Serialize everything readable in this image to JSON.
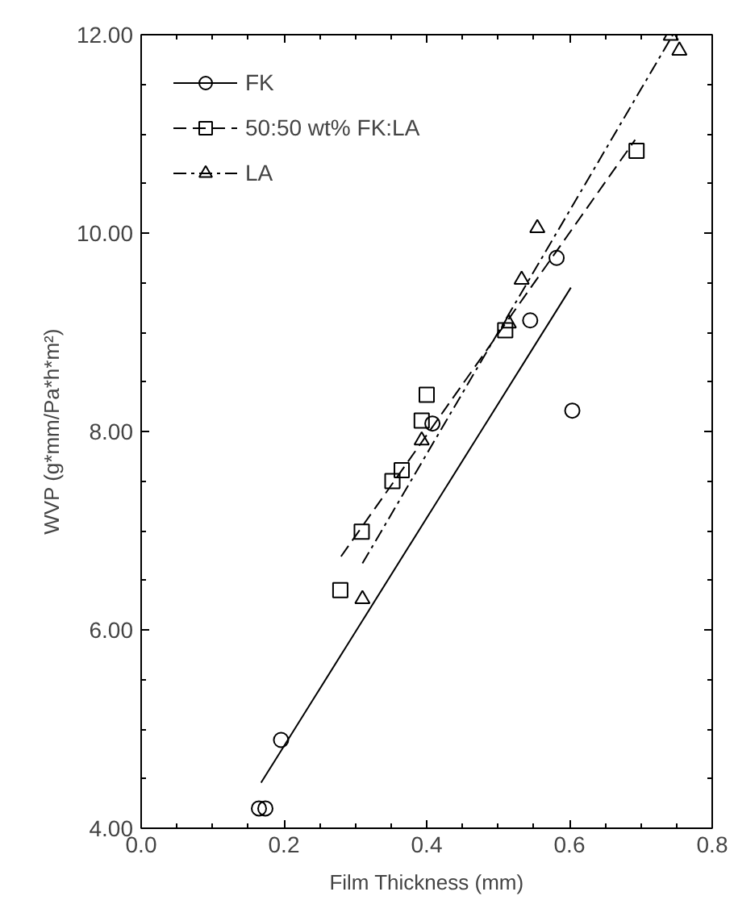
{
  "chart_data": {
    "type": "scatter",
    "xlabel": "Film Thickness (mm)",
    "ylabel": "WVP (g*mm/Pa*h*m²)",
    "xlim": [
      0.0,
      0.8
    ],
    "ylim": [
      4.0,
      12.0
    ],
    "xticks": [
      {
        "value": 0,
        "label": "0.0"
      },
      {
        "value": 0.2,
        "label": "0.2"
      },
      {
        "value": 0.4,
        "label": "0.4"
      },
      {
        "value": 0.6,
        "label": "0.6"
      },
      {
        "value": 0.8,
        "label": "0.8"
      }
    ],
    "yticks": [
      {
        "value": 4,
        "label": "4.00"
      },
      {
        "value": 6,
        "label": "6.00"
      },
      {
        "value": 8,
        "label": "8.00"
      },
      {
        "value": 10,
        "label": "10.00"
      },
      {
        "value": 12,
        "label": "12.00"
      }
    ],
    "grid": false,
    "legend": "top left",
    "series": [
      {
        "name": "FK",
        "marker": "circle",
        "color": "#000000",
        "x": [
          0.165,
          0.174,
          0.196,
          0.408,
          0.545,
          0.604,
          0.582
        ],
        "values": [
          4.2,
          4.2,
          4.89,
          8.08,
          9.12,
          8.21,
          9.75
        ]
      },
      {
        "type": "line",
        "line_style": "solid",
        "color": "#000000",
        "x": [
          0.168,
          0.602
        ],
        "values": [
          4.46,
          9.45
        ]
      },
      {
        "name": "50:50 wt% FK:LA",
        "marker": "square",
        "color": "#000000",
        "x": [
          0.279,
          0.309,
          0.352,
          0.365,
          0.393,
          0.4,
          0.51,
          0.694
        ],
        "values": [
          6.4,
          6.99,
          7.5,
          7.61,
          8.11,
          8.37,
          9.02,
          10.83
        ]
      },
      {
        "type": "line",
        "line_style": "dashed",
        "color": "#000000",
        "x": [
          0.28,
          0.692
        ],
        "values": [
          6.74,
          10.94
        ]
      },
      {
        "name": "LA",
        "marker": "triangle",
        "color": "#000000",
        "x": [
          0.31,
          0.393,
          0.515,
          0.533,
          0.555,
          0.742,
          0.754
        ],
        "values": [
          6.31,
          7.91,
          9.09,
          9.53,
          10.05,
          11.99,
          11.84
        ]
      },
      {
        "type": "line",
        "line_style": "dashdot",
        "color": "#000000",
        "x": [
          0.31,
          0.745
        ],
        "values": [
          6.67,
          12.0
        ]
      }
    ]
  }
}
